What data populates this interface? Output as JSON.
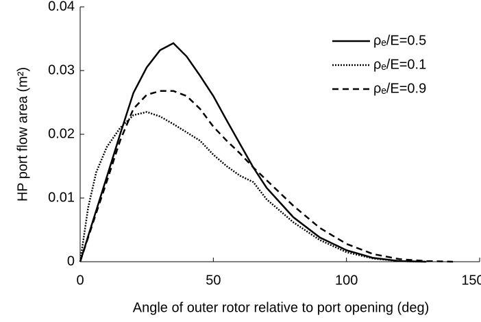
{
  "chart_data": {
    "type": "line",
    "xlabel": "Angle of outer rotor relative to port opening (deg)",
    "ylabel": "HP port flow area (m²)",
    "x": [
      0,
      3,
      6,
      10,
      15,
      20,
      25,
      30,
      35,
      40,
      45,
      50,
      55,
      60,
      65,
      70,
      80,
      90,
      100,
      110,
      120,
      130,
      140
    ],
    "series": [
      {
        "name": "ρₑ/E=0.5",
        "color": "#000000",
        "style": "solid",
        "values": [
          0,
          0.004,
          0.008,
          0.0133,
          0.02,
          0.0265,
          0.0305,
          0.0332,
          0.0343,
          0.0322,
          0.0292,
          0.026,
          0.0222,
          0.0185,
          0.0148,
          0.0116,
          0.007,
          0.0038,
          0.0018,
          0.0006,
          0.0001,
          0,
          null
        ]
      },
      {
        "name": "ρₑ/E=0.1",
        "color": "#000000",
        "style": "dotted",
        "values": [
          0,
          0.0085,
          0.014,
          0.018,
          0.021,
          0.023,
          0.0235,
          0.0228,
          0.0216,
          0.0203,
          0.019,
          0.0168,
          0.015,
          0.0135,
          0.0125,
          0.0098,
          0.0062,
          0.0034,
          0.0015,
          0.0005,
          0.0001,
          0,
          null
        ]
      },
      {
        "name": "ρₑ/E=0.9",
        "color": "#000000",
        "style": "dashed",
        "values": [
          0,
          0.0038,
          0.0076,
          0.0126,
          0.019,
          0.024,
          0.0262,
          0.0268,
          0.0268,
          0.026,
          0.024,
          0.0212,
          0.019,
          0.017,
          0.0148,
          0.0128,
          0.0088,
          0.0053,
          0.0028,
          0.0012,
          0.0004,
          0.0001,
          0
        ]
      }
    ],
    "xlim": [
      0,
      150
    ],
    "xticks": [
      0,
      50,
      100,
      150
    ],
    "ylim": [
      0,
      0.04
    ],
    "yticks": [
      0,
      0.01,
      0.02,
      0.03,
      0.04
    ],
    "legend": "upper right"
  }
}
